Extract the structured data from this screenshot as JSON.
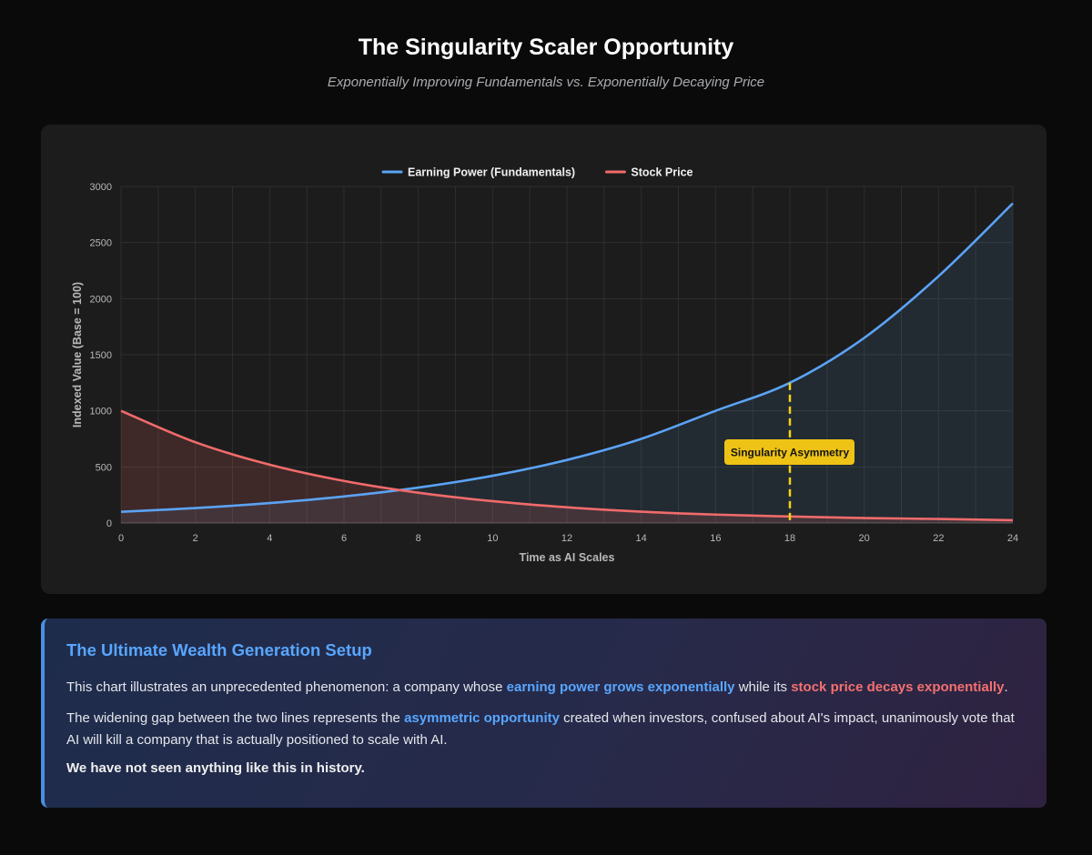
{
  "header": {
    "title": "The Singularity Scaler Opportunity",
    "subtitle": "Exponentially Improving Fundamentals vs. Exponentially Decaying Price"
  },
  "chart_data": {
    "type": "line",
    "title": "",
    "xlabel": "Time as AI Scales",
    "ylabel": "Indexed Value (Base = 100)",
    "xlim": [
      0,
      24
    ],
    "ylim": [
      0,
      3000
    ],
    "xticks": [
      0,
      2,
      4,
      6,
      8,
      10,
      12,
      14,
      16,
      18,
      20,
      22,
      24
    ],
    "yticks": [
      0,
      500,
      1000,
      1500,
      2000,
      2500,
      3000
    ],
    "grid": true,
    "legend_position": "top-center",
    "x": [
      0,
      2,
      4,
      6,
      8,
      10,
      12,
      14,
      16,
      18,
      20,
      22,
      24
    ],
    "series": [
      {
        "name": "Earning Power (Fundamentals)",
        "color": "#5ba3f5",
        "fill": true,
        "values": [
          100,
          133,
          178,
          237,
          316,
          421,
          562,
          750,
          1000,
          1250,
          1650,
          2200,
          2850
        ]
      },
      {
        "name": "Stock Price",
        "color": "#f06b6b",
        "fill": true,
        "values": [
          1000,
          720,
          520,
          375,
          270,
          195,
          140,
          101,
          75,
          58,
          44,
          36,
          25
        ]
      }
    ],
    "annotation": {
      "x": 18,
      "label": "Singularity Asymmetry",
      "line_color": "#f5d313",
      "box_color": "#eec315"
    }
  },
  "info": {
    "title": "The Ultimate Wealth Generation Setup",
    "p1_before": "This chart illustrates an unprecedented phenomenon: a company whose ",
    "p1_hl1": "earning power grows exponentially",
    "p1_mid": " while its ",
    "p1_hl2": "stock price decays exponentially",
    "p1_end": ".",
    "p2_before": "The widening gap between the two lines represents the ",
    "p2_hl": "asymmetric opportunity",
    "p2_after": " created when investors, confused about AI's impact, unanimously vote that AI will kill a company that is actually positioned to scale with AI.",
    "closing": "We have not seen anything like this in history."
  }
}
